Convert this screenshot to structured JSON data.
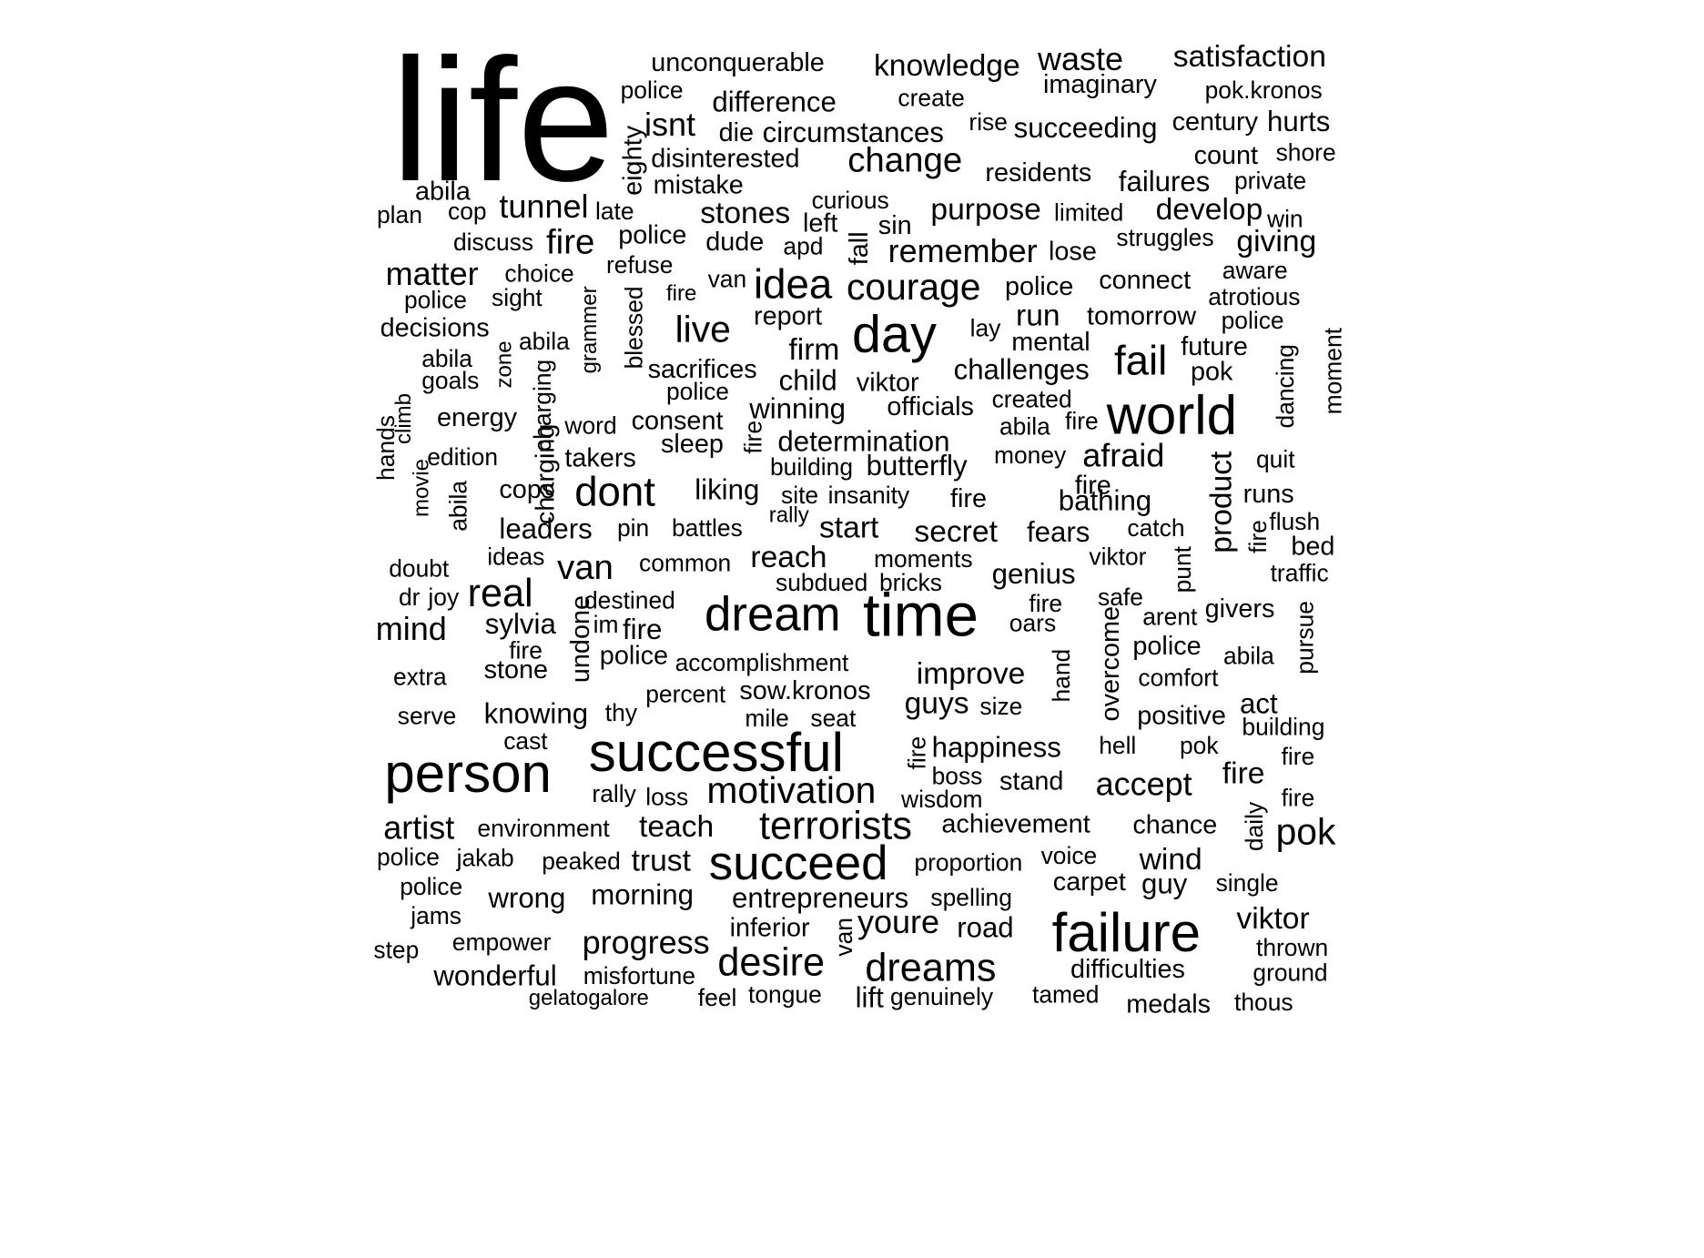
{
  "words": [
    "life",
    "unconquerable",
    "knowledge",
    "waste",
    "satisfaction",
    "police",
    "difference",
    "create",
    "imaginary",
    "pok.kronos",
    "isnt",
    "die",
    "circumstances",
    "rise",
    "succeeding",
    "century",
    "hurts",
    "eighty",
    "disinterested",
    "change",
    "count",
    "shore",
    "residents",
    "failures",
    "private",
    "mistake",
    "abila",
    "plan",
    "cop",
    "tunnel",
    "late",
    "stones",
    "curious",
    "purpose",
    "limited",
    "develop",
    "win",
    "left",
    "sin",
    "discuss",
    "fire",
    "police",
    "dude",
    "apd",
    "fall",
    "remember",
    "lose",
    "struggles",
    "giving",
    "refuse",
    "matter",
    "choice",
    "idea",
    "courage",
    "van",
    "connect",
    "aware",
    "police",
    "sight",
    "fire",
    "police",
    "atrotious",
    "decisions",
    "live",
    "report",
    "day",
    "run",
    "tomorrow",
    "police",
    "lay",
    "abila",
    "abila",
    "grammer",
    "blessed",
    "firm",
    "mental",
    "future",
    "goals",
    "zone",
    "sacrifices",
    "child",
    "challenges",
    "fail",
    "pok",
    "charging",
    "police",
    "viktor",
    "created",
    "energy",
    "word",
    "consent",
    "winning",
    "officials",
    "world",
    "climb",
    "fire",
    "abila",
    "fire",
    "dancing",
    "moment",
    "hands",
    "edition",
    "takers",
    "sleep",
    "determination",
    "money",
    "afraid",
    "quit",
    "charging",
    "building",
    "butterfly",
    "product",
    "movie",
    "cops",
    "liking",
    "fire",
    "abila",
    "dont",
    "site",
    "insanity",
    "fire",
    "bathing",
    "runs",
    "rally",
    "flush",
    "leaders",
    "pin",
    "battles",
    "start",
    "secret",
    "fears",
    "catch",
    "fire",
    "bed",
    "doubt",
    "ideas",
    "van",
    "common",
    "reach",
    "moments",
    "genius",
    "viktor",
    "traffic",
    "dr",
    "joy",
    "real",
    "subdued",
    "bricks",
    "punt",
    "safe",
    "destined",
    "dream",
    "time",
    "fire",
    "givers",
    "mind",
    "sylvia",
    "im",
    "fire",
    "oars",
    "arent",
    "pursue",
    "undone",
    "fire",
    "overcome",
    "police",
    "hand",
    "abila",
    "extra",
    "stone",
    "police",
    "accomplishment",
    "improve",
    "comfort",
    "percent",
    "sow.kronos",
    "act",
    "serve",
    "knowing",
    "thy",
    "mile",
    "seat",
    "guys",
    "size",
    "positive",
    "building",
    "cast",
    "successful",
    "happiness",
    "fire",
    "hell",
    "pok",
    "person",
    "fire",
    "boss",
    "stand",
    "accept",
    "fire",
    "rally",
    "loss",
    "motivation",
    "wisdom",
    "fire",
    "artist",
    "environment",
    "teach",
    "terrorists",
    "achievement",
    "chance",
    "daily",
    "pok",
    "police",
    "jakab",
    "peaked",
    "trust",
    "succeed",
    "proportion",
    "voice",
    "wind",
    "police",
    "carpet",
    "guy",
    "single",
    "wrong",
    "morning",
    "entrepreneurs",
    "spelling",
    "jams",
    "inferior",
    "van",
    "youre",
    "road",
    "failure",
    "viktor",
    "step",
    "empower",
    "progress",
    "thrown",
    "desire",
    "dreams",
    "wonderful",
    "misfortune",
    "difficulties",
    "ground",
    "gelatogalore",
    "feel",
    "tongue",
    "lift",
    "genuinely",
    "tamed",
    "medals",
    "thous"
  ]
}
